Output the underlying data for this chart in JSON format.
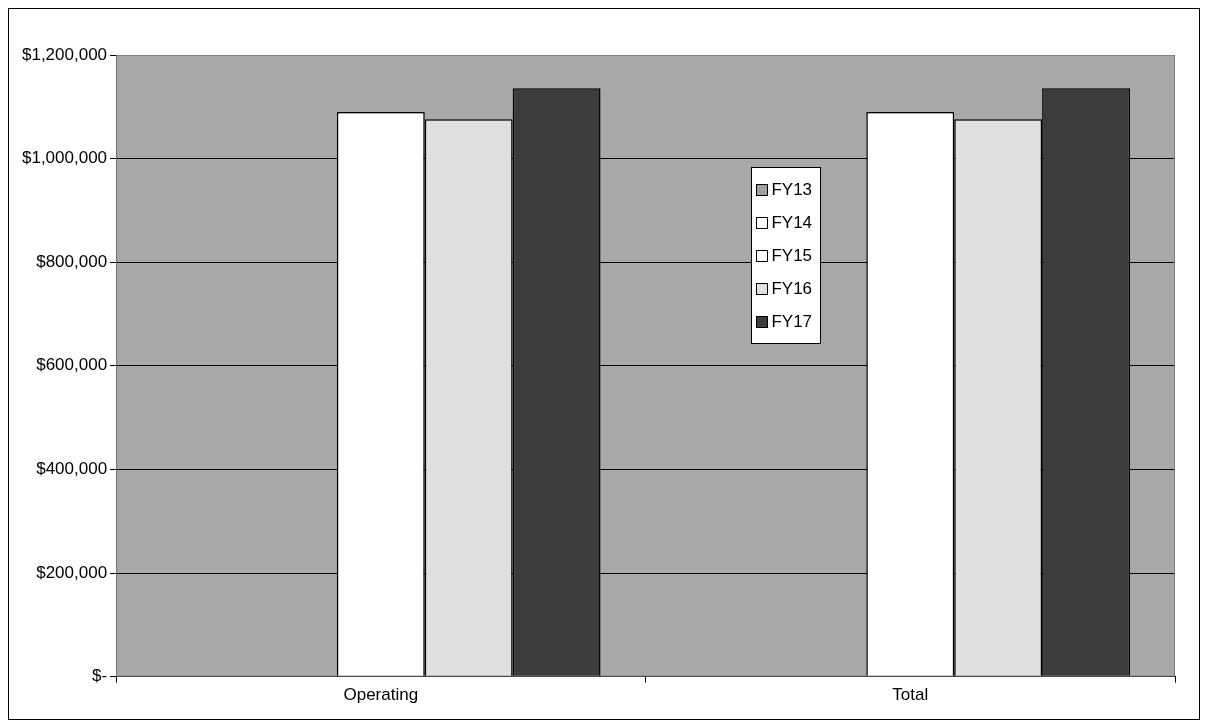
{
  "chart_data": {
    "type": "bar",
    "categories": [
      "Operating",
      "Total"
    ],
    "series": [
      {
        "name": "FY13",
        "color": "#a0a0a0",
        "values": [
          null,
          null
        ]
      },
      {
        "name": "FY14",
        "color": "#ffffff",
        "values": [
          null,
          null
        ]
      },
      {
        "name": "FY15",
        "color": "#ffffff",
        "values": [
          1090000,
          1090000
        ]
      },
      {
        "name": "FY16",
        "color": "#e0e0e0",
        "values": [
          1076000,
          1076000
        ]
      },
      {
        "name": "FY17",
        "color": "#3c3c3c",
        "values": [
          1136000,
          1136000
        ]
      }
    ],
    "ylim": [
      0,
      1200000
    ],
    "yticks": [
      {
        "value": 0,
        "label": "$-"
      },
      {
        "value": 200000,
        "label": "$200,000"
      },
      {
        "value": 400000,
        "label": "$400,000"
      },
      {
        "value": 600000,
        "label": "$600,000"
      },
      {
        "value": 800000,
        "label": "$800,000"
      },
      {
        "value": 1000000,
        "label": "$1,000,000"
      },
      {
        "value": 1200000,
        "label": "$1,200,000"
      }
    ],
    "grid": "y",
    "legend": "right"
  }
}
